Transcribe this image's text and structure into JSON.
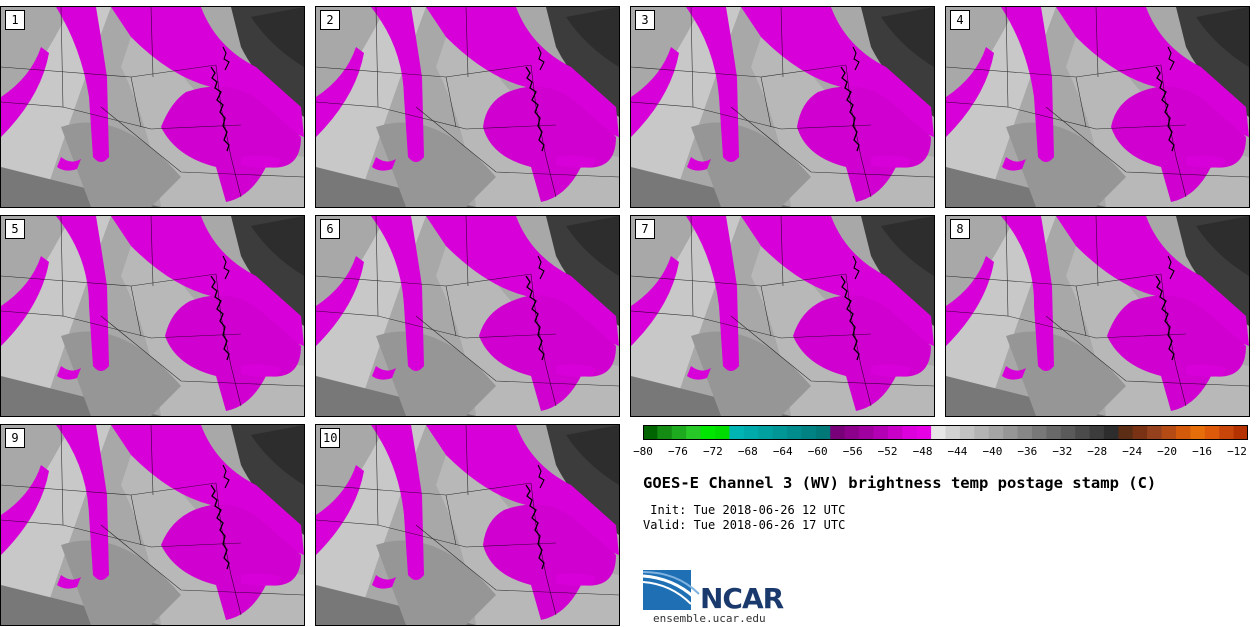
{
  "panels": [
    {
      "label": "1"
    },
    {
      "label": "2"
    },
    {
      "label": "3"
    },
    {
      "label": "4"
    },
    {
      "label": "5"
    },
    {
      "label": "6"
    },
    {
      "label": "7"
    },
    {
      "label": "8"
    },
    {
      "label": "9"
    },
    {
      "label": "10"
    }
  ],
  "colorbar": {
    "colors": [
      "#006400",
      "#148c14",
      "#1eaa1e",
      "#28c828",
      "#00e600",
      "#00dc00",
      "#00b4b4",
      "#00aaaa",
      "#00a0a0",
      "#009696",
      "#008c8c",
      "#008282",
      "#007878",
      "#780078",
      "#8c008c",
      "#a000a0",
      "#b400b4",
      "#c800c8",
      "#dc00dc",
      "#e600e6",
      "#e6e6e6",
      "#d2d2d2",
      "#c3c3c3",
      "#b4b4b4",
      "#a5a5a5",
      "#969696",
      "#878787",
      "#787878",
      "#696969",
      "#5a5a5a",
      "#4b4b4b",
      "#3c3c3c",
      "#2d2d2d",
      "#5a2d14",
      "#7a3214",
      "#96411e",
      "#b44b14",
      "#d25a0a",
      "#e66e0a",
      "#dc5a0a",
      "#c8460a",
      "#b43200"
    ],
    "ticks": [
      "−80",
      "−76",
      "−72",
      "−68",
      "−64",
      "−60",
      "−56",
      "−52",
      "−48",
      "−44",
      "−40",
      "−36",
      "−32",
      "−28",
      "−24",
      "−20",
      "−16",
      "−12"
    ]
  },
  "title": "GOES-E Channel 3 (WV) brightness temp postage stamp (C)",
  "init": " Init: Tue 2018-06-26 12 UTC",
  "valid": "Valid: Tue 2018-06-26 17 UTC",
  "logo": {
    "word": "NCAR",
    "url": "ensemble.ucar.edu"
  }
}
